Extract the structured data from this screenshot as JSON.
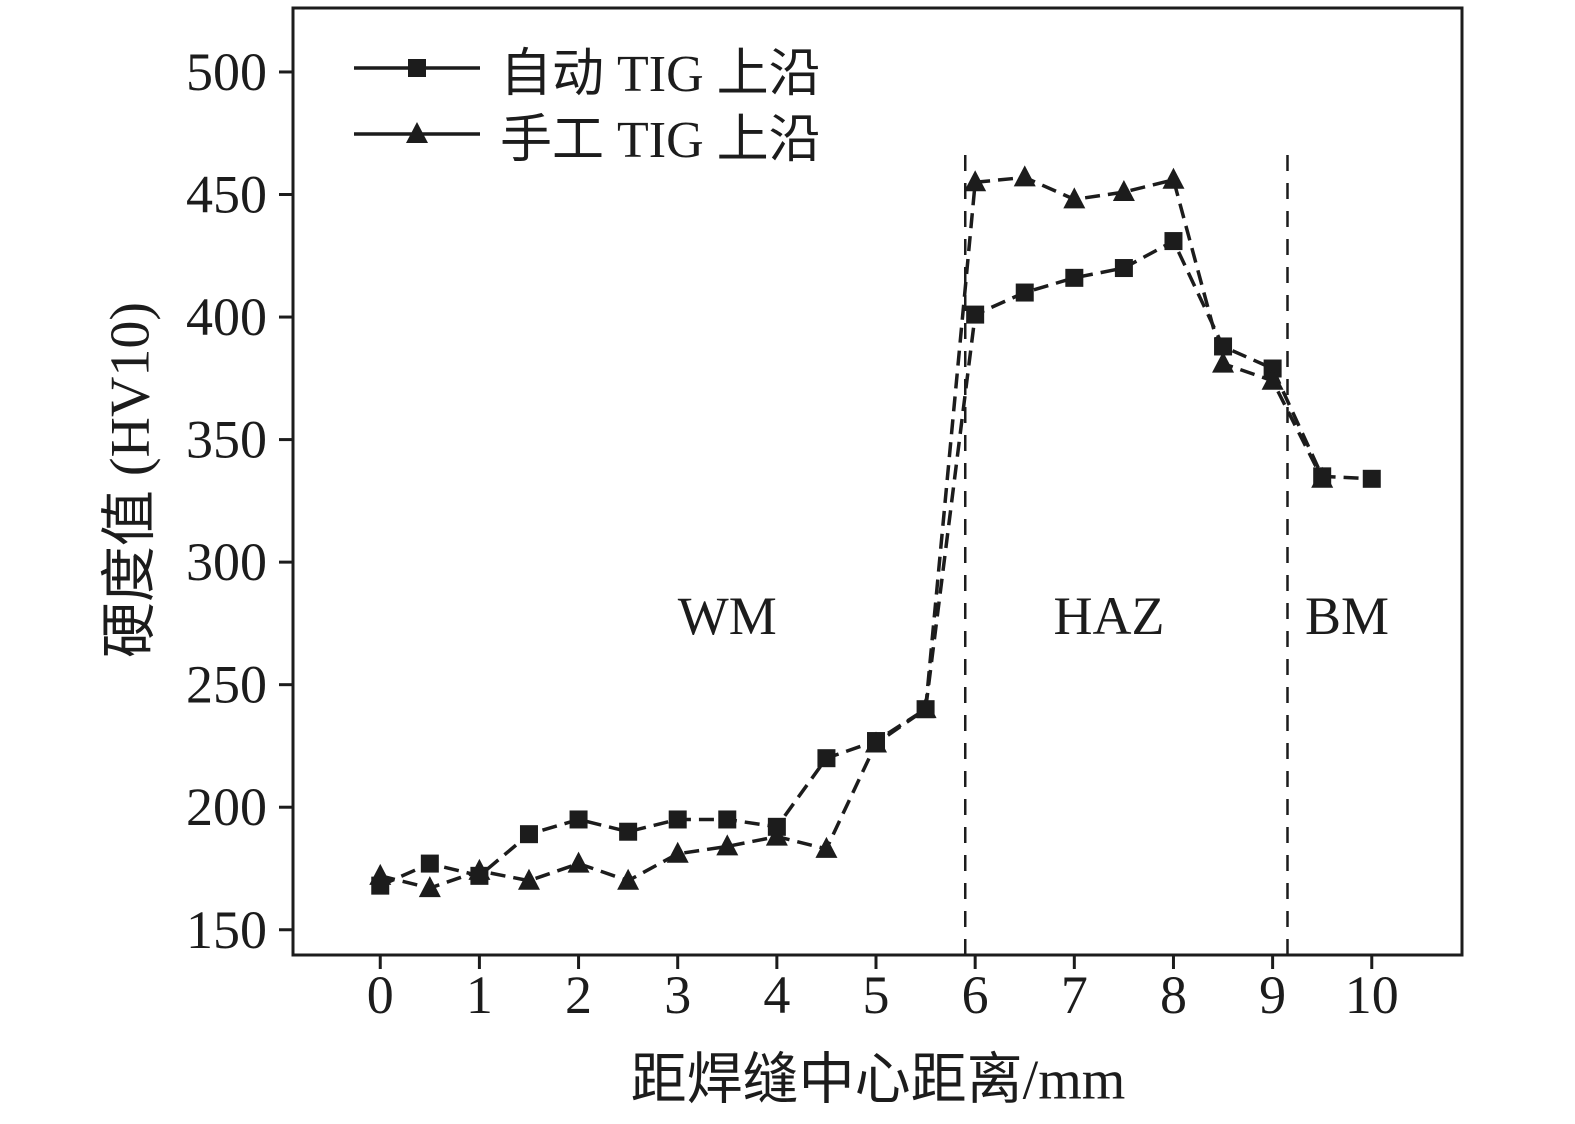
{
  "chart_data": {
    "type": "line",
    "title": "",
    "xlabel": "距焊缝中心距离/mm",
    "ylabel": "硬度值 (HV10)",
    "xlim": [
      -0.88,
      10.91
    ],
    "ylim": [
      139.7,
      526.1
    ],
    "x_ticks": [
      0,
      1,
      2,
      3,
      4,
      5,
      6,
      7,
      8,
      9,
      10
    ],
    "y_ticks": [
      150,
      200,
      250,
      300,
      350,
      400,
      450,
      500
    ],
    "grid": false,
    "legend_position": "top-left",
    "colors": {
      "line": "#1c1c1c"
    },
    "series": [
      {
        "name": "自动 TIG 上沿",
        "marker": "square",
        "x": [
          0,
          0.5,
          1,
          1.5,
          2,
          2.5,
          3,
          3.5,
          4,
          4.5,
          5,
          5.5,
          6,
          6.5,
          7,
          7.5,
          8,
          8.5,
          9,
          9.5,
          10
        ],
        "values": [
          168,
          177,
          172,
          189,
          195,
          190,
          195,
          195,
          192,
          220,
          227,
          240,
          401,
          410,
          416,
          420,
          431,
          388,
          379,
          335,
          334
        ]
      },
      {
        "name": "手工 TIG 上沿",
        "marker": "triangle",
        "x": [
          0,
          0.5,
          1,
          1.5,
          2,
          2.5,
          3,
          3.5,
          4,
          4.5,
          5,
          5.5,
          6,
          6.5,
          7,
          7.5,
          8,
          8.5,
          9,
          9.5
        ],
        "values": [
          172,
          167,
          174,
          170,
          177,
          170,
          181,
          184,
          188,
          183,
          226,
          240,
          455,
          457,
          448,
          451,
          456,
          381,
          374,
          334
        ]
      }
    ],
    "zone_boundaries": [
      {
        "x": 5.9,
        "y_top": 470
      },
      {
        "x": 9.15,
        "y_top": 470
      }
    ],
    "zone_labels": [
      {
        "text": "WM",
        "x": 3.5,
        "y": 278
      },
      {
        "text": "HAZ",
        "x": 7.35,
        "y": 278
      },
      {
        "text": "BM",
        "x": 9.75,
        "y": 278
      }
    ]
  }
}
